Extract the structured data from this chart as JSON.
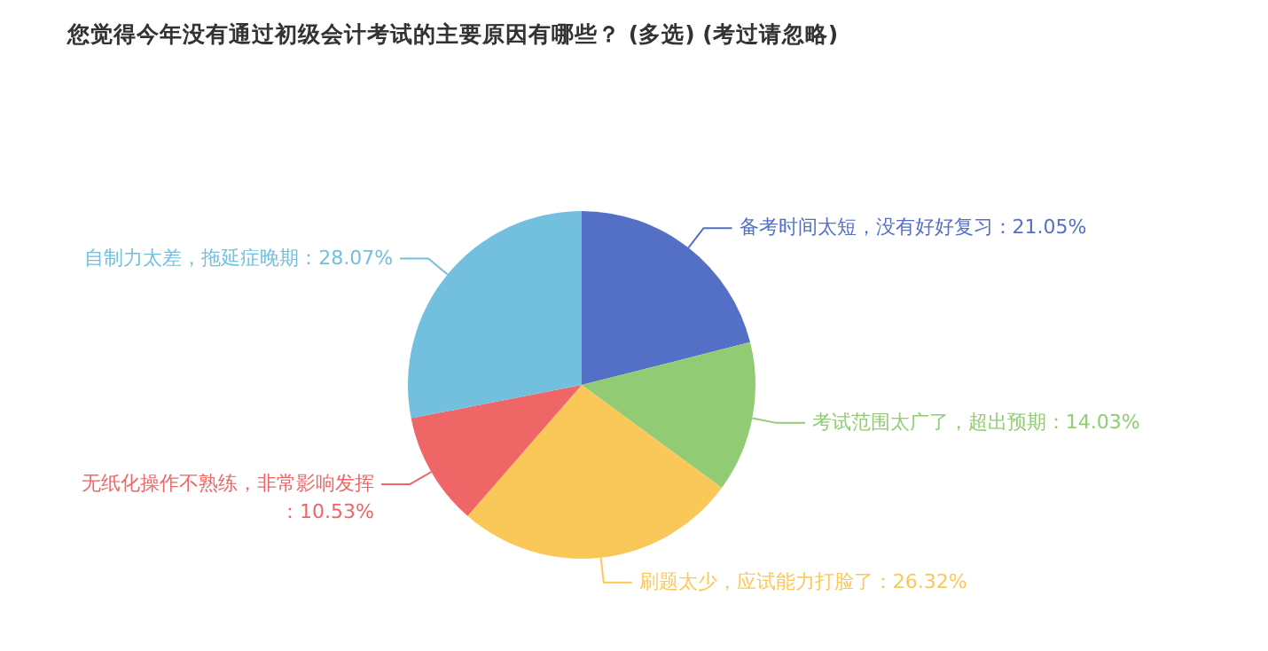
{
  "chart_data": {
    "type": "pie",
    "title": "您觉得今年没有通过初级会计考试的主要原因有哪些？  (多选)  (考过请忽略)",
    "categories": [
      "备考时间太短，没有好好复习",
      "考试范围太广了，超出预期",
      "刷题太少，应试能力打脸了",
      "无纸化操作不熟练，非常影响发挥",
      "自制力太差，拖延症晚期"
    ],
    "values": [
      21.05,
      14.03,
      26.32,
      10.53,
      28.07
    ],
    "value_labels": [
      "：21.05%",
      "：14.03%",
      "：26.32%",
      "：10.53%",
      "：28.07%"
    ],
    "colors": [
      "#5470c6",
      "#91cc75",
      "#fac858",
      "#ee6666",
      "#73c0de"
    ]
  }
}
